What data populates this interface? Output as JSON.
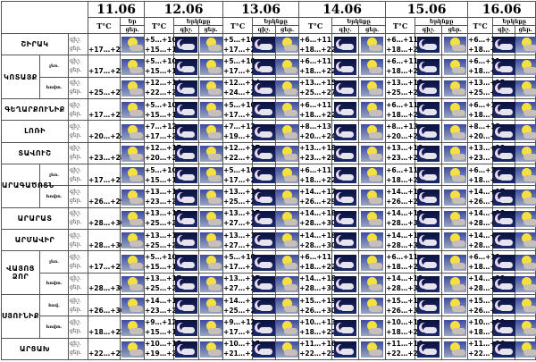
{
  "header": {
    "dates": [
      "11.06",
      "12.06",
      "13.06",
      "14.06",
      "15.06",
      "16.06"
    ],
    "temp_label": "T°C",
    "sky_label": "Երկնքը",
    "sky_label_short": "Եր",
    "night_label": "գիշ.",
    "day_label": "ցեր."
  },
  "rows": [
    {
      "region": "ՇԻՐԱԿ",
      "zone": "",
      "d11": "+17…+21",
      "days": [
        [
          "+5…+10",
          "+15…+19"
        ],
        [
          "+5…+10",
          "+17…+21"
        ],
        [
          "+6…+11",
          "+18…+22"
        ],
        [
          "+6…+11",
          "+18…+22"
        ],
        [
          "+6…+11",
          "+18…+22"
        ]
      ]
    },
    {
      "region": "ԿՈՏԱՅՔ",
      "zone": "լեռ.",
      "d11": "+17…+21",
      "days": [
        [
          "+5…+10",
          "+15…+19"
        ],
        [
          "+5…+10",
          "+17…+21"
        ],
        [
          "+6…+11",
          "+18…+22"
        ],
        [
          "+6…+11",
          "+18…+22"
        ],
        [
          "+6…+11",
          "+18…+22"
        ]
      ]
    },
    {
      "region": "",
      "zone": "հովտ.",
      "d11": "+25…+27",
      "days": [
        [
          "+12…+14",
          "+22…+24"
        ],
        [
          "+12…+14",
          "+24…+26"
        ],
        [
          "+13…+15",
          "+25…+27"
        ],
        [
          "+13…+15",
          "+25…+27"
        ],
        [
          "+13…+15",
          "+25…+27"
        ]
      ]
    },
    {
      "region": "ԳԵՂԱՐՔՈՒՆԻՔ",
      "zone": "",
      "d11": "+17…+21",
      "days": [
        [
          "+5…+10",
          "+15…+19"
        ],
        [
          "+5…+10",
          "+17…+21"
        ],
        [
          "+6…+11",
          "+18…+22"
        ],
        [
          "+6…+11",
          "+18…+22"
        ],
        [
          "+6…+11",
          "+18…+22"
        ]
      ]
    },
    {
      "region": "ԼՈՌԻ",
      "zone": "",
      "d11": "+20…+24",
      "days": [
        [
          "+7…+12",
          "+17…+21"
        ],
        [
          "+7…+12",
          "+19…+23"
        ],
        [
          "+8…+13",
          "+20…+24"
        ],
        [
          "+8…+13",
          "+20…+24"
        ],
        [
          "+8…+13",
          "+20…+24"
        ]
      ]
    },
    {
      "region": "ՏԱՎՈՒՇ",
      "zone": "",
      "d11": "+23…+28",
      "days": [
        [
          "+12…+17",
          "+20…+25"
        ],
        [
          "+12…+17",
          "+22…+27"
        ],
        [
          "+13…+18",
          "+23…+28"
        ],
        [
          "+13…+18",
          "+23…+28"
        ],
        [
          "+13…+18",
          "+23…+28"
        ]
      ]
    },
    {
      "region": "ԱՐԱԳԱԾՈՏՆ",
      "zone": "լեռ.",
      "d11": "+17…+21",
      "days": [
        [
          "+5…+10",
          "+15…+19"
        ],
        [
          "+5…+10",
          "+17…+21"
        ],
        [
          "+6…+11",
          "+18…+22"
        ],
        [
          "+6…+11",
          "+18…+22"
        ],
        [
          "+6…+11",
          "+18…+22"
        ]
      ]
    },
    {
      "region": "",
      "zone": "հովտ.",
      "d11": "+26…+29",
      "days": [
        [
          "+13…+16",
          "+23…+26"
        ],
        [
          "+13…+16",
          "+25…+28"
        ],
        [
          "+14…+17",
          "+26…+29"
        ],
        [
          "+14…+17",
          "+26…+29"
        ],
        [
          "+14…+17",
          "+26…+29"
        ]
      ]
    },
    {
      "region": "ԱՐԱՐԱՏ",
      "zone": "",
      "d11": "+28…+30",
      "days": [
        [
          "+13…+17",
          "+25…+27"
        ],
        [
          "+13…+17",
          "+27…+29"
        ],
        [
          "+14…+18",
          "+28…+30"
        ],
        [
          "+14…+18",
          "+28…+30"
        ],
        [
          "+14…+18",
          "+28…+30"
        ]
      ]
    },
    {
      "region": "ԱՐՄԱՎԻՐ",
      "zone": "",
      "d11": "+28…+30",
      "days": [
        [
          "+13…+17",
          "+25…+27"
        ],
        [
          "+13…+17",
          "+27…+29"
        ],
        [
          "+14…+18",
          "+28…+30"
        ],
        [
          "+14…+18",
          "+28…+30"
        ],
        [
          "+14…+18",
          "+28…+30"
        ]
      ]
    },
    {
      "region": "ՎԱՅՈՑ ՁՈՐ",
      "zone": "լեռ.",
      "d11": "+17…+21",
      "days": [
        [
          "+5…+10",
          "+15…+19"
        ],
        [
          "+5…+10",
          "+17…+21"
        ],
        [
          "+6…+11",
          "+18…+22"
        ],
        [
          "+6…+11",
          "+18…+22"
        ],
        [
          "+6…+11",
          "+18…+22"
        ]
      ]
    },
    {
      "region": "",
      "zone": "հովտ.",
      "d11": "+28…+30",
      "days": [
        [
          "+13…+17",
          "+25…+27"
        ],
        [
          "+13…+17",
          "+27…+29"
        ],
        [
          "+14…+18",
          "+28…+30"
        ],
        [
          "+14…+18",
          "+28…+30"
        ],
        [
          "+14…+18",
          "+28…+30"
        ]
      ]
    },
    {
      "region": "ՍՅՈՒՆԻՔ",
      "zone": "հով.",
      "d11": "+26…+30",
      "days": [
        [
          "+14…+19",
          "+23…+27"
        ],
        [
          "+14…+19",
          "+25…+29"
        ],
        [
          "+15…+19",
          "+26…+30"
        ],
        [
          "+15…+19",
          "+26…+30"
        ],
        [
          "+15…+19",
          "+26…+30"
        ]
      ]
    },
    {
      "region": "",
      "zone": "հովտ.",
      "d11": "+18…+22",
      "days": [
        [
          "+9…+12",
          "+15…+19"
        ],
        [
          "+9…+12",
          "+17…+21"
        ],
        [
          "+10…+13",
          "+18…+22"
        ],
        [
          "+10…+13",
          "+18…+22"
        ],
        [
          "+10…+13",
          "+18…+22"
        ]
      ]
    },
    {
      "region": "ԱՐՑԱԽ",
      "zone": "",
      "d11": "+22…+25",
      "days": [
        [
          "+10…+15",
          "+19…+22"
        ],
        [
          "+10…+15",
          "+21…+24"
        ],
        [
          "+11…+16",
          "+22…+25"
        ],
        [
          "+11…+16",
          "+22…+25"
        ],
        [
          "+11…+16",
          "+22…+25"
        ]
      ]
    }
  ],
  "icons": {
    "night": "moon-cloud-icon",
    "day": "sun-cloud-icon"
  },
  "colors": {
    "night_bg": "#0c1240",
    "day_bg": "#3b4aa0",
    "sun": "#f4e040"
  }
}
